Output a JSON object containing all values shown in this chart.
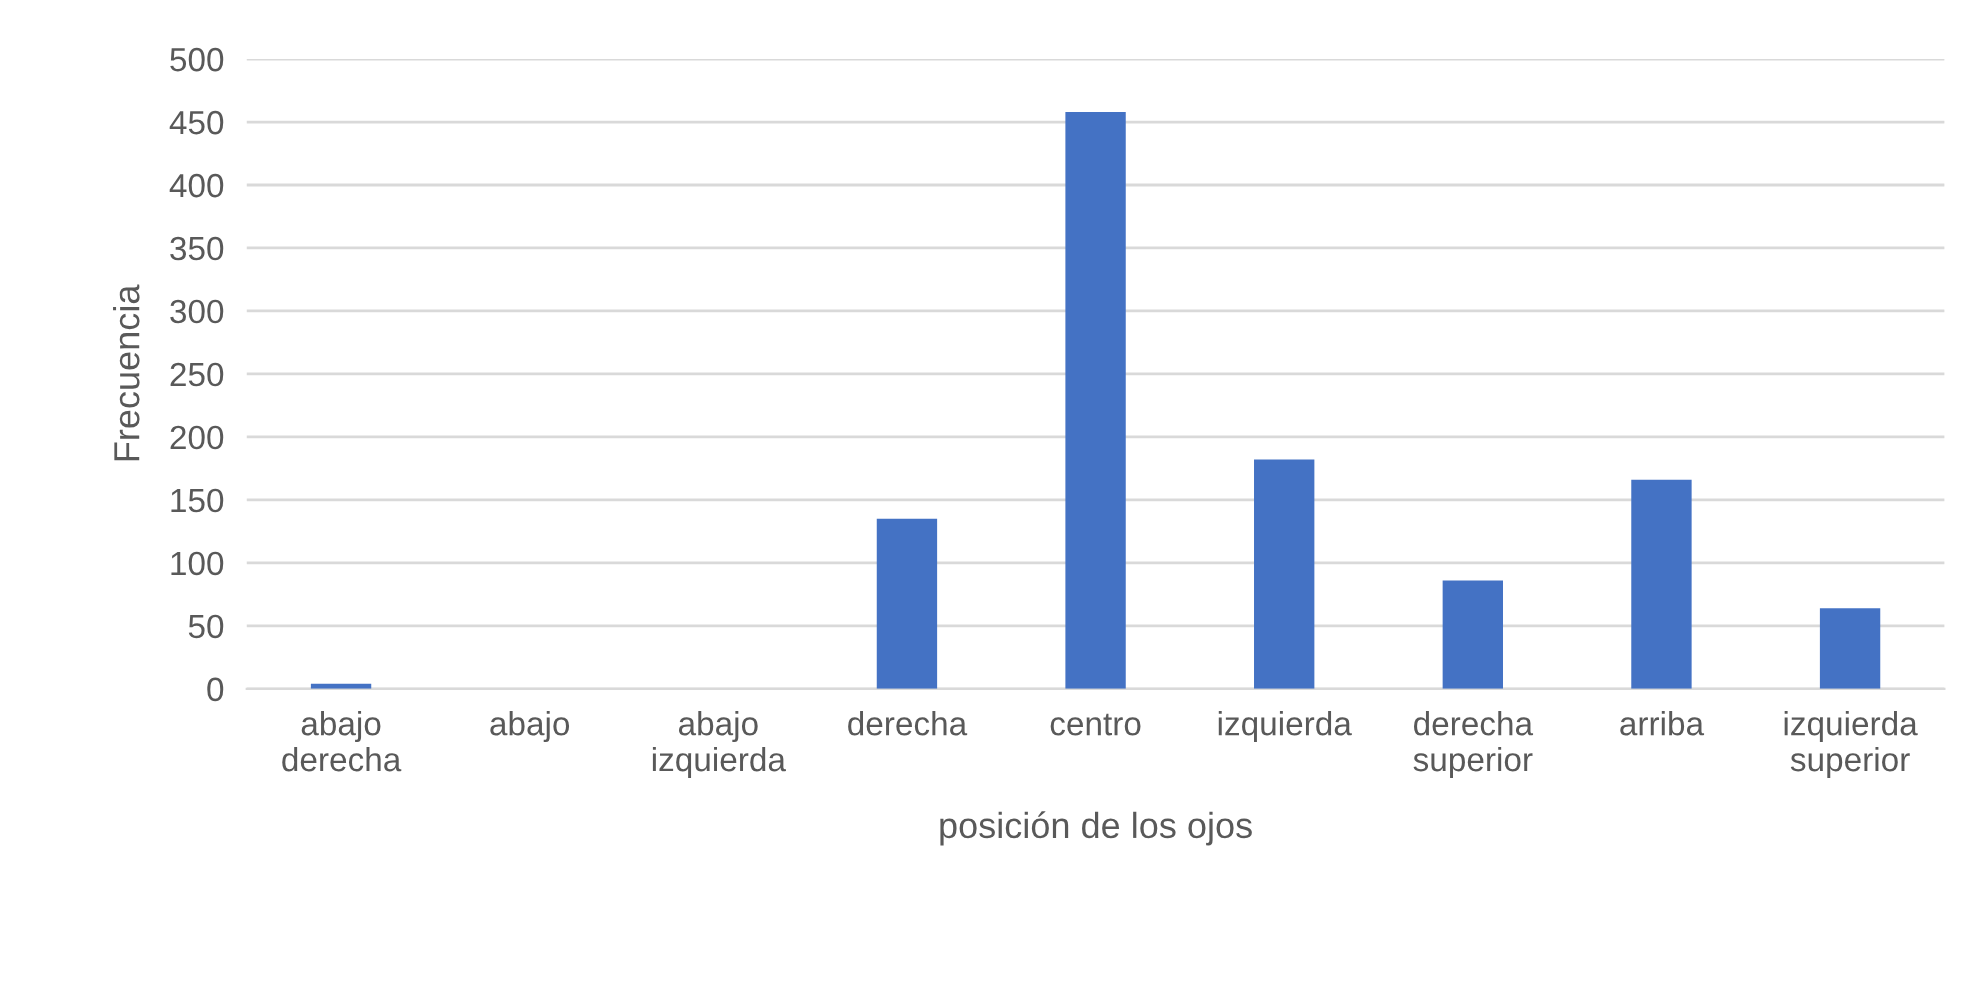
{
  "chart_data": {
    "type": "bar",
    "xlabel": "posición de los ojos",
    "ylabel": "Frecuencia",
    "categories": [
      "abajo derecha",
      "abajo",
      "abajo izquierda",
      "derecha",
      "centro",
      "izquierda",
      "derecha superior",
      "arriba",
      "izquierda superior"
    ],
    "values": [
      4,
      0,
      0,
      135,
      458,
      182,
      86,
      166,
      64
    ],
    "color": "#4472c4",
    "ylim": [
      0,
      500
    ],
    "yticks": [
      0,
      50,
      100,
      150,
      200,
      250,
      300,
      350,
      400,
      450,
      500
    ],
    "grid": "y"
  }
}
